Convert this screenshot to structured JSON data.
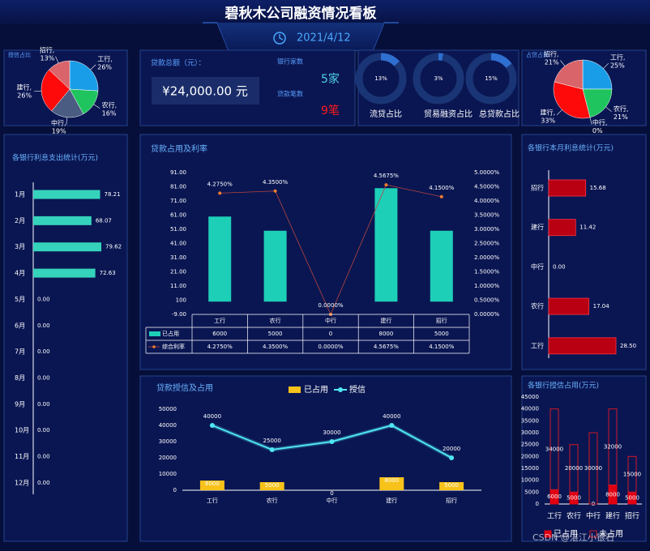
{
  "header": {
    "title": "碧秋木公司融资情况看板",
    "date": "2021/4/12"
  },
  "kpi": {
    "label": "贷款总额（元）：",
    "total": "¥24,000.00 元",
    "banks_label": "银行家数",
    "banks": "5家",
    "loans_label": "贷款笔数",
    "loans": "9笔"
  },
  "watermark": "CSDN @湛江小银石",
  "chart_data": [
    {
      "type": "pie",
      "title": "授信占比",
      "categories": [
        "工行,",
        "农行,",
        "中行,",
        "建行,",
        "招行,"
      ],
      "values": [
        26,
        16,
        19,
        26,
        13
      ],
      "value_labels": [
        "26%",
        "16%",
        "19%",
        "26%",
        "13%"
      ],
      "colors": [
        "#1a9de8",
        "#1fc45e",
        "#4a5c82",
        "#ff0a0a",
        "#d9646a"
      ]
    },
    {
      "type": "donut",
      "categories": [
        "流贷占比",
        "贸易融资占比",
        "总贷款占比"
      ],
      "values": [
        13,
        3,
        15
      ],
      "value_labels": [
        "13%",
        "3%",
        "15%"
      ],
      "color": "#2e6fd0",
      "track_color": "#1a3575"
    },
    {
      "type": "pie",
      "title": "占贷占比",
      "categories": [
        "工行,",
        "农行,",
        "中行,",
        "建行,",
        "招行,"
      ],
      "values": [
        25,
        21,
        0,
        33,
        21
      ],
      "value_labels": [
        "25%",
        "21%",
        "0%",
        "33%",
        "21%"
      ],
      "colors": [
        "#1a9de8",
        "#1fc45e",
        "#4a5c82",
        "#ff0a0a",
        "#d9646a"
      ]
    },
    {
      "type": "hbar",
      "title": "各银行利息支出统计(万元)",
      "categories": [
        "1月",
        "2月",
        "3月",
        "4月",
        "5月",
        "6月",
        "7月",
        "8月",
        "9月",
        "10月",
        "11月",
        "12月"
      ],
      "values": [
        78.21,
        68.07,
        79.62,
        72.63,
        0,
        0,
        0,
        0,
        0,
        0,
        0,
        0
      ],
      "value_labels": [
        "78.21",
        "68.07",
        "79.62",
        "72.63",
        "0.00",
        "0.00",
        "0.00",
        "0.00",
        "0.00",
        "0.00",
        "0.00",
        "0.00"
      ],
      "color": "#35d3bc"
    },
    {
      "type": "combo",
      "title": "贷款占用及利率",
      "categories": [
        "工行",
        "农行",
        "中行",
        "建行",
        "招行"
      ],
      "data_table": true,
      "series": [
        {
          "name": "已占用",
          "type": "bar",
          "color": "#1ecfb8",
          "values": [
            6000,
            5000,
            0,
            8000,
            5000
          ],
          "show_labels": false
        },
        {
          "name": "综合利率",
          "type": "line",
          "axis": "y2",
          "color": "#b5453f",
          "marker_color": "#ed7d31",
          "values": [
            4.275,
            4.35,
            0,
            4.5675,
            4.15
          ],
          "value_labels": [
            "4.2750%",
            "4.3500%",
            "0.0000%",
            "4.5675%",
            "4.1500%"
          ],
          "show_labels": true
        }
      ],
      "ylim": [
        -900,
        9100
      ],
      "yticks": [
        {
          "value": 9100,
          "label": "91.00"
        },
        {
          "value": 8100,
          "label": "81.00"
        },
        {
          "value": 7100,
          "label": "71.00"
        },
        {
          "value": 6100,
          "label": "61.00"
        },
        {
          "value": 5100,
          "label": "51.00"
        },
        {
          "value": 4100,
          "label": "41.00"
        },
        {
          "value": 3100,
          "label": "31.00"
        },
        {
          "value": 2100,
          "label": "21.00"
        },
        {
          "value": 1100,
          "label": "11.00"
        },
        100,
        {
          "value": -900,
          "label": "-9.00"
        }
      ],
      "y2lim": [
        0,
        5
      ],
      "y2ticks": [
        {
          "value": 5,
          "label": "5.0000%"
        },
        {
          "value": 4.5,
          "label": "4.5000%"
        },
        {
          "value": 4,
          "label": "4.0000%"
        },
        {
          "value": 3.5,
          "label": "3.5000%"
        },
        {
          "value": 3,
          "label": "3.0000%"
        },
        {
          "value": 2.5,
          "label": "2.5000%"
        },
        {
          "value": 2,
          "label": "2.0000%"
        },
        {
          "value": 1.5,
          "label": "1.5000%"
        },
        {
          "value": 1,
          "label": "1.0000%"
        },
        {
          "value": 0.5,
          "label": "0.5000%"
        },
        {
          "value": 0,
          "label": "0.0000%"
        }
      ]
    },
    {
      "type": "combo",
      "title": "贷款授信及占用",
      "categories": [
        "工行",
        "农行",
        "中行",
        "建行",
        "招行"
      ],
      "legend": "top",
      "series": [
        {
          "name": "已占用",
          "type": "bar",
          "color": "#f7c21a",
          "values": [
            6000,
            5000,
            0,
            8000,
            5000
          ],
          "show_labels": true
        },
        {
          "name": "授信",
          "type": "line",
          "color": "#4fe6f2",
          "marker_color": "#4fe6f2",
          "values": [
            40000,
            25000,
            30000,
            40000,
            20000
          ],
          "show_labels": true
        }
      ],
      "ylim": [
        0,
        50000
      ],
      "yticks": [
        0,
        10000,
        20000,
        30000,
        40000,
        50000
      ]
    },
    {
      "type": "hbar",
      "title": "各银行本月利息统计(万元)",
      "categories": [
        "招行",
        "建行",
        "中行",
        "农行",
        "工行"
      ],
      "values": [
        15.68,
        11.42,
        0,
        17.04,
        28.5
      ],
      "value_labels": [
        "15.68",
        "11.42",
        "0.00",
        "17.04",
        "28.50"
      ],
      "color": "#b80012",
      "border_color": "#ff3344"
    },
    {
      "type": "stacked",
      "title": "各银行授信占用(万元)",
      "categories": [
        "工行",
        "农行",
        "中行",
        "建行",
        "招行"
      ],
      "legend": "bottom",
      "series": [
        {
          "name": "已占用",
          "color": "#e00012",
          "filled": true,
          "values": [
            6000,
            5000,
            0,
            8000,
            5000
          ]
        },
        {
          "name": "未占用",
          "color": "#d01828",
          "filled": false,
          "values": [
            34000,
            20000,
            30000,
            32000,
            15000
          ]
        }
      ],
      "ylim": [
        0,
        45000
      ],
      "yticks": [
        0,
        5000,
        10000,
        15000,
        20000,
        25000,
        30000,
        35000,
        40000,
        45000
      ]
    }
  ]
}
